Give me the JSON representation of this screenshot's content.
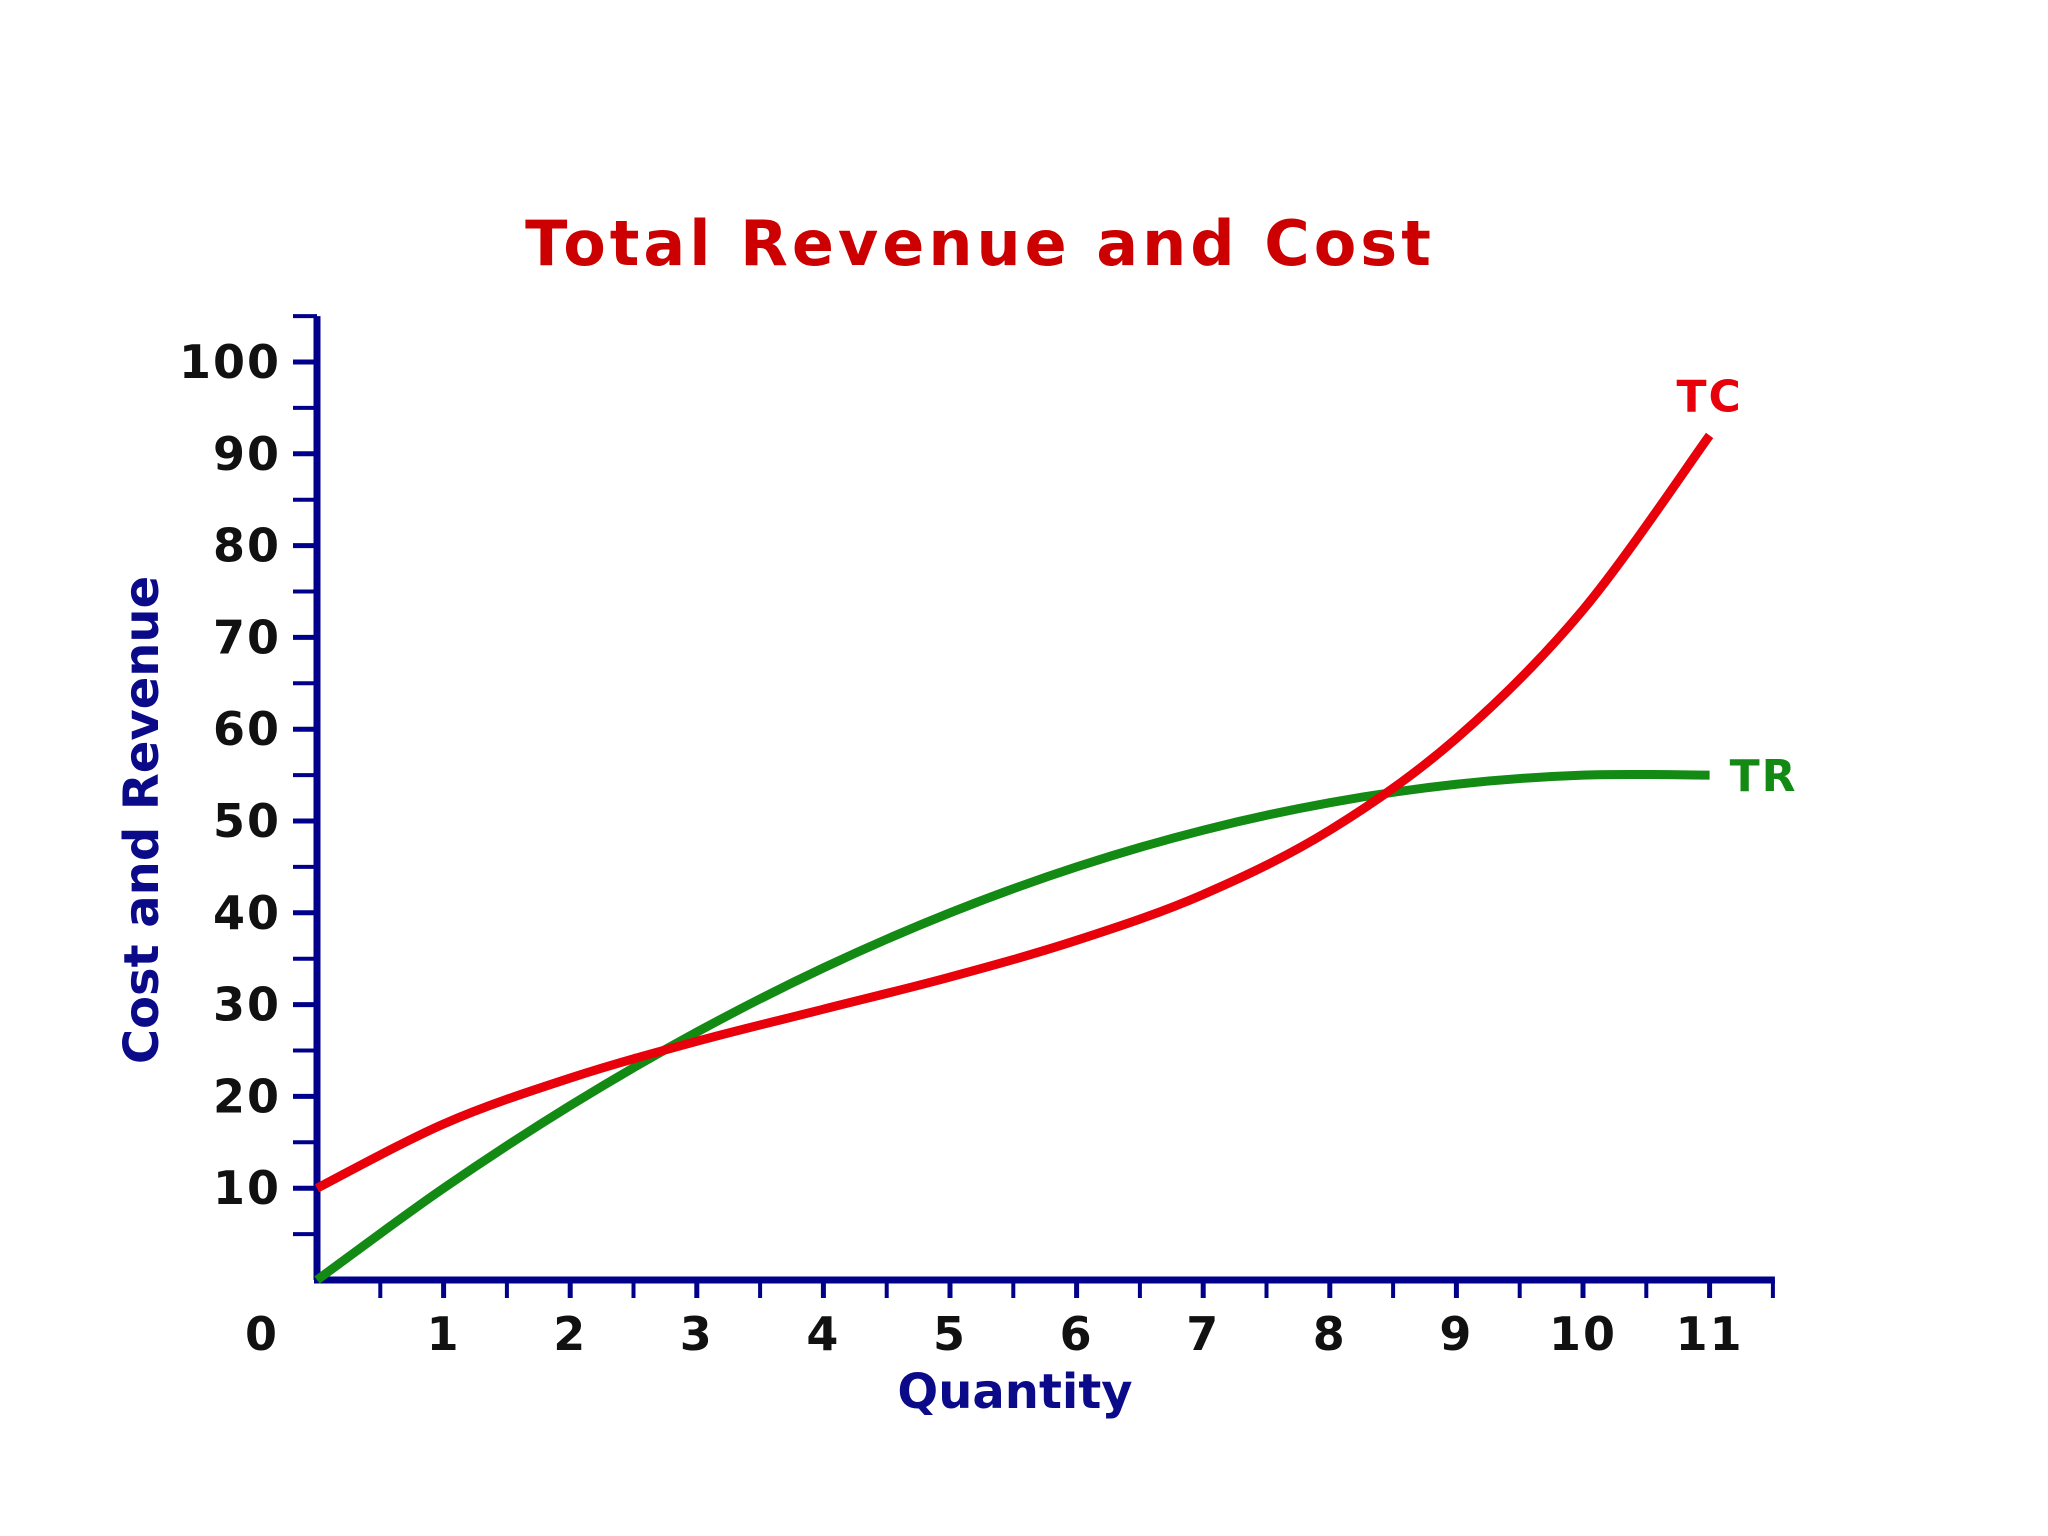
{
  "chart_data": {
    "type": "line",
    "title": "Total Revenue and Cost",
    "xlabel": "Quantity",
    "ylabel": "Cost and Revenue",
    "xlim": [
      0,
      11.5
    ],
    "ylim": [
      0,
      105
    ],
    "x_ticks": [
      1,
      2,
      3,
      4,
      5,
      6,
      7,
      8,
      9,
      10,
      11
    ],
    "x_tick_labels": [
      "1",
      "2",
      "3",
      "4",
      "5",
      "6",
      "7",
      "8",
      "9",
      "10",
      "11"
    ],
    "y_ticks": [
      10,
      20,
      30,
      40,
      50,
      60,
      70,
      80,
      90,
      100
    ],
    "y_tick_labels": [
      "10",
      "20",
      "30",
      "40",
      "50",
      "60",
      "70",
      "80",
      "90",
      "100"
    ],
    "origin_label": "0",
    "grid": false,
    "series": [
      {
        "name": "TC",
        "color": "#e8000b",
        "x": [
          0,
          1,
          2,
          3,
          4,
          5,
          6,
          7,
          8,
          9,
          10,
          11
        ],
        "y": [
          10,
          17,
          22,
          26,
          29.5,
          33,
          37,
          42,
          49,
          59,
          73,
          92
        ]
      },
      {
        "name": "TR",
        "color": "#138a13",
        "x": [
          0,
          1,
          2,
          3,
          4,
          5,
          6,
          7,
          8,
          9,
          10,
          11
        ],
        "y": [
          0,
          10,
          19,
          27,
          34,
          40,
          45,
          49,
          52,
          54,
          55,
          55
        ]
      }
    ],
    "colors": {
      "title": "#cc0000",
      "axis": "#00008b",
      "tick_label": "#111111",
      "axis_label": "#0b0b8a"
    }
  }
}
